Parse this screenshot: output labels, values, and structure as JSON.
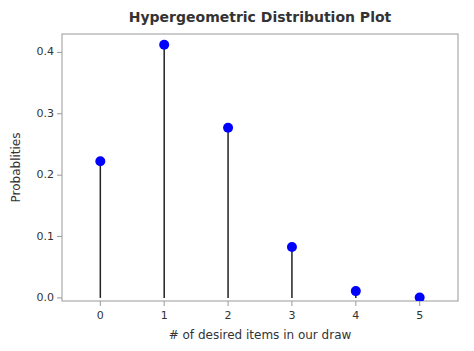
{
  "chart_data": {
    "type": "stem",
    "title": "Hypergeometric Distribution Plot",
    "xlabel": "# of desired items in our draw",
    "ylabel": "Probablities",
    "x": [
      0,
      1,
      2,
      3,
      4,
      5
    ],
    "values": [
      0.2228,
      0.4124,
      0.2772,
      0.0831,
      0.0111,
      0.0005
    ],
    "color": "blue",
    "marker": "circle",
    "xlim": [
      -0.6,
      5.6
    ],
    "ylim": [
      -0.005,
      0.43
    ],
    "xticks": [
      0,
      1,
      2,
      3,
      4,
      5
    ],
    "yticks": [
      {
        "value": 0,
        "label": "0.0"
      },
      0.1,
      0.2,
      0.3,
      0.4
    ],
    "grid": false
  }
}
